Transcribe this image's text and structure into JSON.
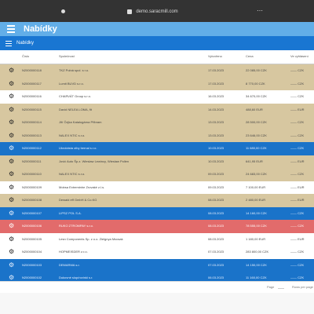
{
  "browser": {
    "url": "demo.saracmill.com"
  },
  "app": {
    "title": "Nabídky",
    "subtitle": "Nabídky"
  },
  "columns": [
    "Číslo",
    "Společnost",
    "Vytvořeno",
    "Cena",
    "Ve vyhlásení"
  ],
  "rows": [
    {
      "id": "N2000000118",
      "company": "TKZ Polná spol. s r.o.",
      "date": "17.03.2023",
      "price": "22 085,00 CZK",
      "status": "—— CZK"
    },
    {
      "id": "N2000000117",
      "company": "Lumit BUVD s.r.o.",
      "date": "17.03.2023",
      "price": "8 770,00 CZK",
      "status": "—— CZK"
    },
    {
      "id": "N2000000116",
      "company": "CHARVÁT Group s.r.o.",
      "date": "16.03.2023",
      "price": "34 670,00 CZK",
      "status": "—— CZK"
    },
    {
      "id": "N2000000115",
      "company": "David NELEA LOMA, fit",
      "date": "14.03.2023",
      "price": "488,60 EUR",
      "status": "—— EUR"
    },
    {
      "id": "N2000000114",
      "company": "Jiří Čejka Katalogárna Přibram",
      "date": "13.03.2023",
      "price": "28 500,00 CZK",
      "status": "—— CZK"
    },
    {
      "id": "N2000000113",
      "company": "NALEX NTIC s.r.o.",
      "date": "13.03.2023",
      "price": "23 646,00 CZK",
      "status": "—— CZK"
    },
    {
      "id": "N2000000112",
      "company": "Ukrolotsta olby bernal s.r.o.",
      "date": "10.03.2023",
      "price": "11 680,00 CZK",
      "status": "—— CZK"
    },
    {
      "id": "N2000000111",
      "company": "Jović Auto Šp.z. Wieslaw Lewincy, Wieslaw Pollen",
      "date": "10.03.2023",
      "price": "641,95 EUR",
      "status": "—— EUR"
    },
    {
      "id": "N2000000110",
      "company": "NALEX NTIC s.r.o.",
      "date": "09.03.2023",
      "price": "24 683,00 CZK",
      "status": "—— CZK"
    },
    {
      "id": "N2000000109",
      "company": "Mobsa Extreminhe Zrovaké z.l.s.",
      "date": "09.03.2023",
      "price": "7 100,00 EUR",
      "status": "—— EUR"
    },
    {
      "id": "N2000000108",
      "company": "Dewald eff GmbH & Co.KG",
      "date": "08.03.2023",
      "price": "2 480,00 EUR",
      "status": "—— EUR"
    },
    {
      "id": "N2000000107",
      "company": "LIPSZ POL S.A.",
      "date": "08.03.2023",
      "price": "14 160,00 CZK",
      "status": "—— CZK"
    },
    {
      "id": "N2000000106",
      "company": "RUKO ZTROMPAY s.r.o.",
      "date": "08.03.2023",
      "price": "78 555,00 CZK",
      "status": "—— CZK"
    },
    {
      "id": "N2000000105",
      "company": "Lesn Components Sp. z o.o. Zielgnya Mocsak",
      "date": "08.03.2023",
      "price": "1 180,00 EUR",
      "status": "—— EUR"
    },
    {
      "id": "N2000000104",
      "company": "HOPMEISDER z.r.o.",
      "date": "07.03.2023",
      "price": "283 800,00 CZK",
      "status": "—— CZK"
    },
    {
      "id": "N2000000103",
      "company": "DEMARMA s.r.",
      "date": "07.03.2023",
      "price": "14 150,00 CZK",
      "status": "—— CZK"
    },
    {
      "id": "N2000000102",
      "company": "Dukovné slop/rovinki s.r.",
      "date": "06.03.2023",
      "price": "11 160,00 CZK",
      "status": "—— CZK"
    }
  ],
  "row_colors": [
    "#d7c7a0",
    "#d7c7a0",
    "#ffffff",
    "#d7c7a0",
    "#d7c7a0",
    "#d7c7a0",
    "#1a73c9",
    "#d7c7a0",
    "#d7c7a0",
    "#ffffff",
    "#d7c7a0",
    "#1a73c9",
    "#e26b6b",
    "#ffffff",
    "#ffffff",
    "#1a73c9",
    "#1a73c9"
  ],
  "footer": {
    "page_label": "Page",
    "rows_label": "Rows per page"
  }
}
